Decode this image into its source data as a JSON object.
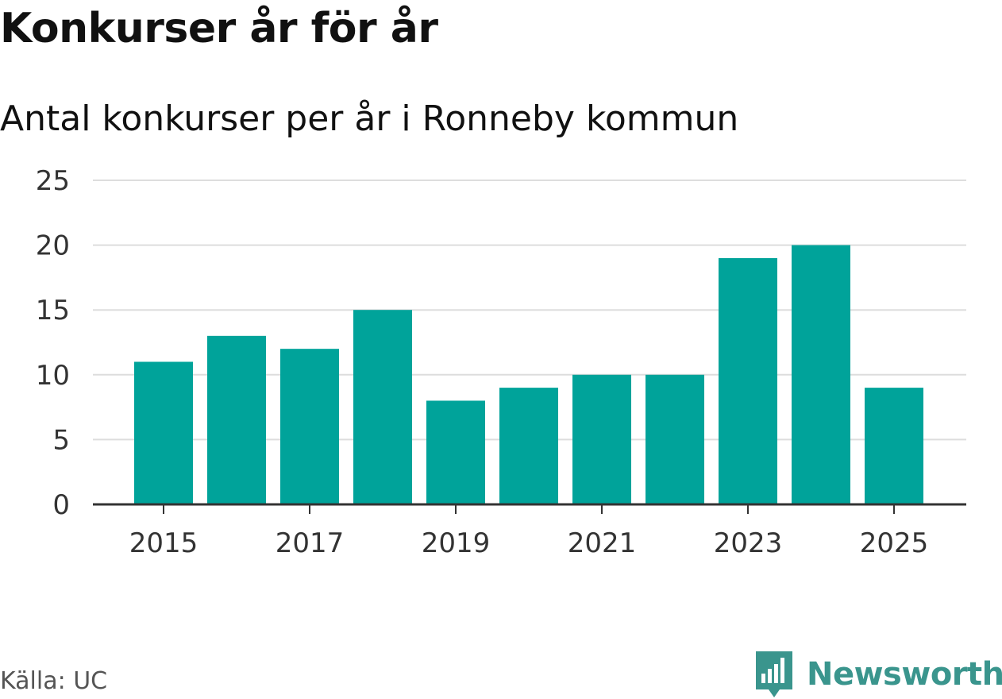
{
  "header": {
    "title": "Konkurser år för år",
    "subtitle": "Antal konkurser per år i Ronneby kommun"
  },
  "footer": {
    "source": "Källa: UC",
    "brand_name": "Newsworthy",
    "brand_icon": "newsworthy-logo-icon",
    "brand_color": "#3a958d"
  },
  "colors": {
    "bar": "#00a39a",
    "grid": "#dddddd",
    "axis": "#333333",
    "text": "#333333"
  },
  "chart_data": {
    "type": "bar",
    "title": "Konkurser år för år",
    "subtitle": "Antal konkurser per år i Ronneby kommun",
    "xlabel": "",
    "ylabel": "",
    "categories": [
      "2015",
      "2016",
      "2017",
      "2018",
      "2019",
      "2020",
      "2021",
      "2022",
      "2023",
      "2024",
      "2025"
    ],
    "values": [
      11,
      13,
      12,
      15,
      8,
      9,
      10,
      10,
      19,
      20,
      9
    ],
    "x_tick_labels": [
      "2015",
      "2017",
      "2019",
      "2021",
      "2023",
      "2025"
    ],
    "y_ticks": [
      0,
      5,
      10,
      15,
      20,
      25
    ],
    "ylim": [
      0,
      25
    ],
    "grid": true
  }
}
